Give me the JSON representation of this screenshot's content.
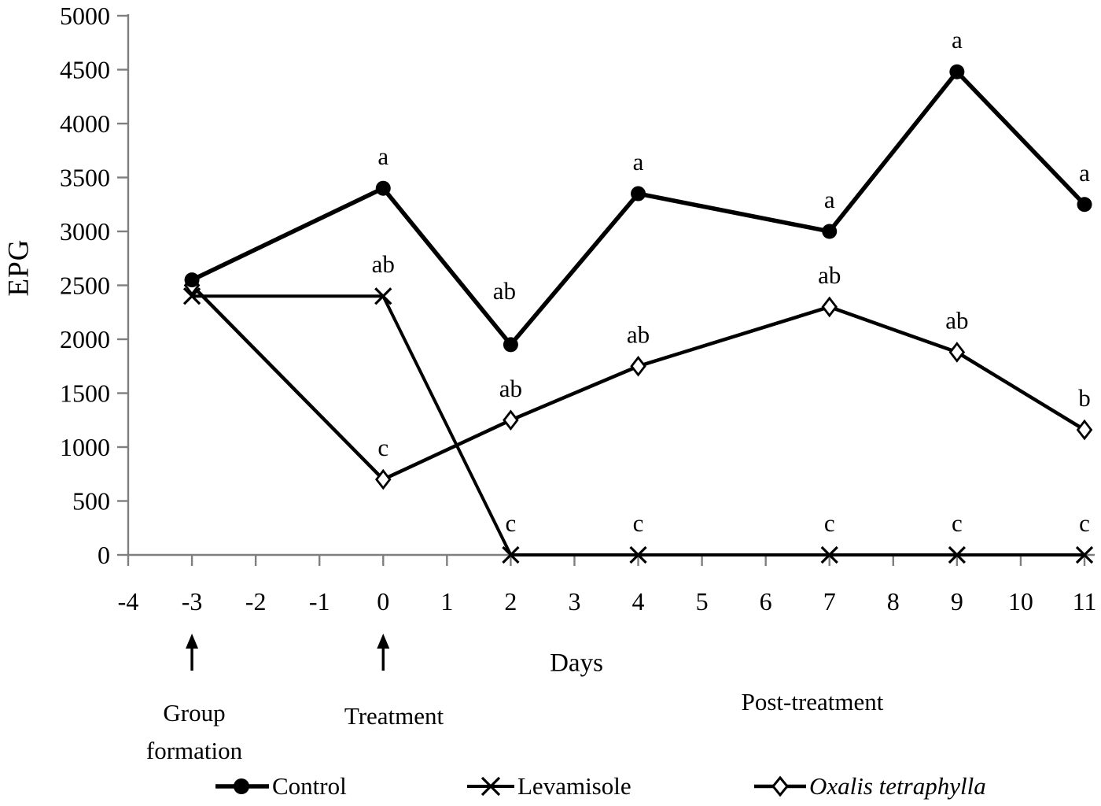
{
  "figure": {
    "background": "#ffffff",
    "ylabel": "EPG",
    "xlabel": "Days"
  },
  "chart_data": {
    "type": "line",
    "title": "",
    "xlabel": "Days",
    "ylabel": "EPG",
    "xlim": [
      -4,
      11
    ],
    "ylim": [
      0,
      5000
    ],
    "grid": false,
    "legend_position": "bottom",
    "xticks": [
      -4,
      -3,
      -2,
      -1,
      0,
      1,
      2,
      3,
      4,
      5,
      6,
      7,
      8,
      9,
      10,
      11
    ],
    "yticks": [
      0,
      500,
      1000,
      1500,
      2000,
      2500,
      3000,
      3500,
      4000,
      4500,
      5000
    ],
    "x": [
      -3,
      0,
      2,
      4,
      7,
      9,
      11
    ],
    "series": [
      {
        "name": "Control",
        "marker": "filled-circle",
        "values": [
          2550,
          3400,
          1950,
          3350,
          3000,
          4480,
          3250
        ],
        "sig_letters": [
          "",
          "a",
          "ab",
          "a",
          "a",
          "a",
          "a"
        ]
      },
      {
        "name": "Levamisole",
        "marker": "x-cross",
        "values": [
          2400,
          2400,
          0,
          0,
          0,
          0,
          0
        ],
        "sig_letters": [
          "",
          "ab",
          "c",
          "c",
          "c",
          "c",
          "c"
        ]
      },
      {
        "name": "Oxalis tetraphylla",
        "marker": "open-diamond",
        "italic": true,
        "values": [
          2500,
          700,
          1250,
          1750,
          2300,
          1880,
          1160
        ],
        "sig_letters": [
          "",
          "c",
          "ab",
          "ab",
          "ab",
          "ab",
          "b"
        ]
      }
    ],
    "events": [
      {
        "x": -3,
        "label": "Group formation"
      },
      {
        "x": 0,
        "label": "Treatment"
      }
    ],
    "phase_label": "Post-treatment",
    "colors": {
      "series": "#000000",
      "axis": "#7f7f7f",
      "text": "#000000"
    }
  },
  "legend": {
    "items": [
      {
        "label": "Control",
        "marker": "filled-circle"
      },
      {
        "label": "Levamisole",
        "marker": "x-cross"
      },
      {
        "label": "Oxalis tetraphylla",
        "marker": "open-diamond",
        "italic": true
      }
    ]
  }
}
